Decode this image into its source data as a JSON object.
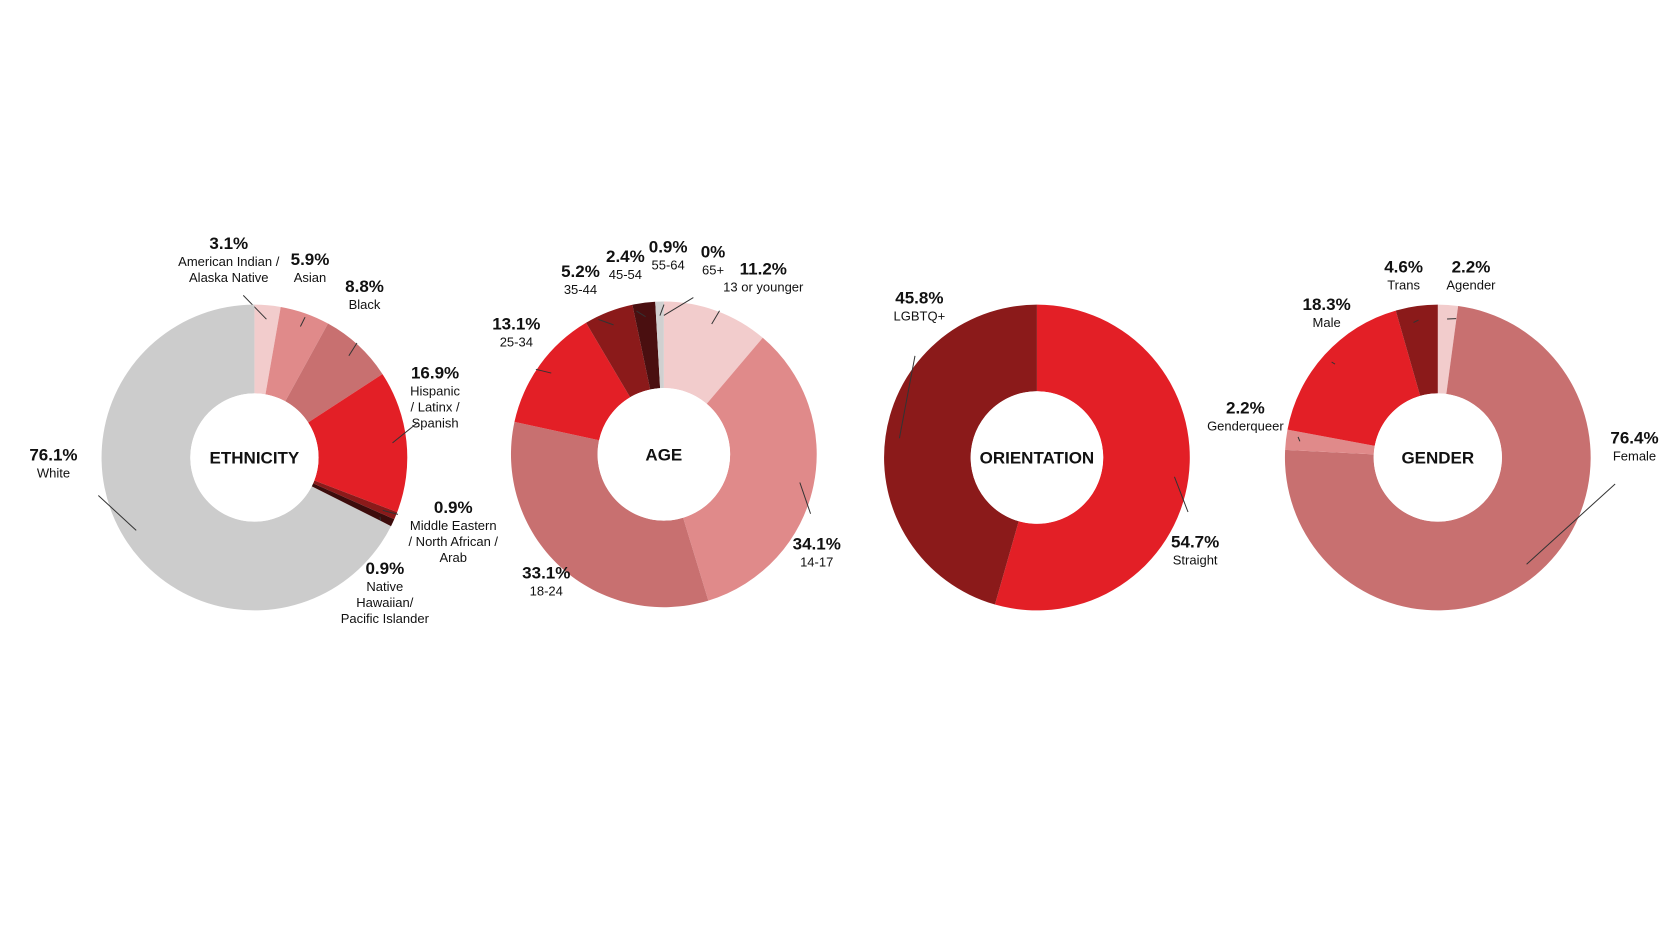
{
  "chart_data": [
    {
      "type": "pie",
      "title": "ETHNICITY",
      "categories": [
        "American Indian /\nAlaska Native",
        "Asian",
        "Black",
        "Hispanic\n/ Latinx /\nSpanish",
        "Middle Eastern\n/ North African /\nArab",
        "Native\nHawaiian/\nPacific Islander",
        "White"
      ],
      "values": [
        3.1,
        5.9,
        8.8,
        16.9,
        0.9,
        0.9,
        76.1
      ],
      "value_labels": [
        "3.1%",
        "5.9%",
        "8.8%",
        "16.9%",
        "0.9%",
        "0.9%",
        "76.1%"
      ],
      "colors": [
        "#f2cccc",
        "#e08a8a",
        "#c87070",
        "#e31f26",
        "#8b1a1a",
        "#3d0c0c",
        "#cccccc"
      ]
    },
    {
      "type": "pie",
      "title": "AGE",
      "categories": [
        "13 or younger",
        "14-17",
        "18-24",
        "25-34",
        "35-44",
        "45-54",
        "55-64",
        "65+"
      ],
      "values": [
        11.2,
        34.1,
        33.1,
        13.1,
        5.2,
        2.4,
        0.9,
        0
      ],
      "value_labels": [
        "11.2%",
        "34.1%",
        "33.1%",
        "13.1%",
        "5.2%",
        "2.4%",
        "0.9%",
        "0%"
      ],
      "colors": [
        "#f2cccc",
        "#e08a8a",
        "#c87070",
        "#e31f26",
        "#8b1a1a",
        "#4a0f10",
        "#d0d0d0",
        "#cccccc"
      ]
    },
    {
      "type": "pie",
      "title": "ORIENTATION",
      "categories": [
        "Straight",
        "LGBTQ+"
      ],
      "values": [
        54.7,
        45.8
      ],
      "value_labels": [
        "54.7%",
        "45.8%"
      ],
      "colors": [
        "#e31f26",
        "#8b1a1a"
      ]
    },
    {
      "type": "pie",
      "title": "GENDER",
      "categories": [
        "Agender",
        "Female",
        "Genderqueer",
        "Male",
        "Trans"
      ],
      "values": [
        2.2,
        76.4,
        2.2,
        18.3,
        4.6
      ],
      "value_labels": [
        "2.2%",
        "76.4%",
        "2.2%",
        "18.3%",
        "4.6%"
      ],
      "colors": [
        "#f2cccc",
        "#c87070",
        "#e08a8a",
        "#e31f26",
        "#8b1a1a"
      ]
    }
  ]
}
